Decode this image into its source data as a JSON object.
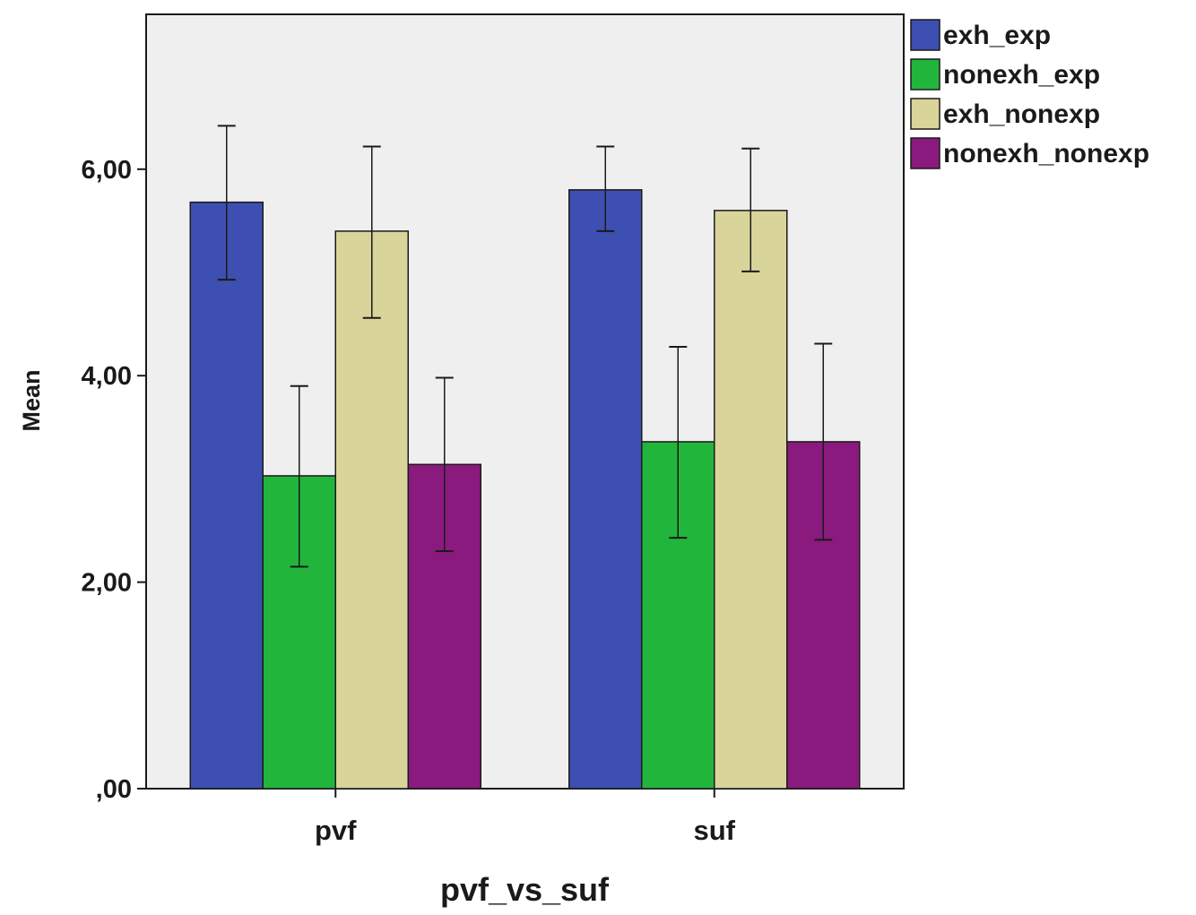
{
  "chart_data": {
    "type": "bar",
    "title": "",
    "xlabel": "pvf_vs_suf",
    "ylabel": "Mean",
    "categories": [
      "pvf",
      "suf"
    ],
    "ylim": [
      0,
      7.5
    ],
    "yticks": [
      0,
      2,
      4,
      6
    ],
    "ytick_labels": [
      ",00",
      "2,00",
      "4,00",
      "6,00"
    ],
    "legend_position": "top-right, outside plot",
    "grid": false,
    "series": [
      {
        "name": "exh_exp",
        "color": "#3d4fb0",
        "values": [
          5.68,
          5.8
        ],
        "error_low": [
          4.93,
          5.4
        ],
        "error_high": [
          6.42,
          6.22
        ]
      },
      {
        "name": "nonexh_exp",
        "color": "#22b53c",
        "values": [
          3.03,
          3.36
        ],
        "error_low": [
          2.15,
          2.43
        ],
        "error_high": [
          3.9,
          4.28
        ]
      },
      {
        "name": "exh_nonexp",
        "color": "#d9d49a",
        "values": [
          5.4,
          5.6
        ],
        "error_low": [
          4.56,
          5.01
        ],
        "error_high": [
          6.22,
          6.2
        ]
      },
      {
        "name": "nonexh_nonexp",
        "color": "#8a1a7e",
        "values": [
          3.14,
          3.36
        ],
        "error_low": [
          2.3,
          2.41
        ],
        "error_high": [
          3.98,
          4.31
        ]
      }
    ],
    "plot_background": "#efefef"
  }
}
